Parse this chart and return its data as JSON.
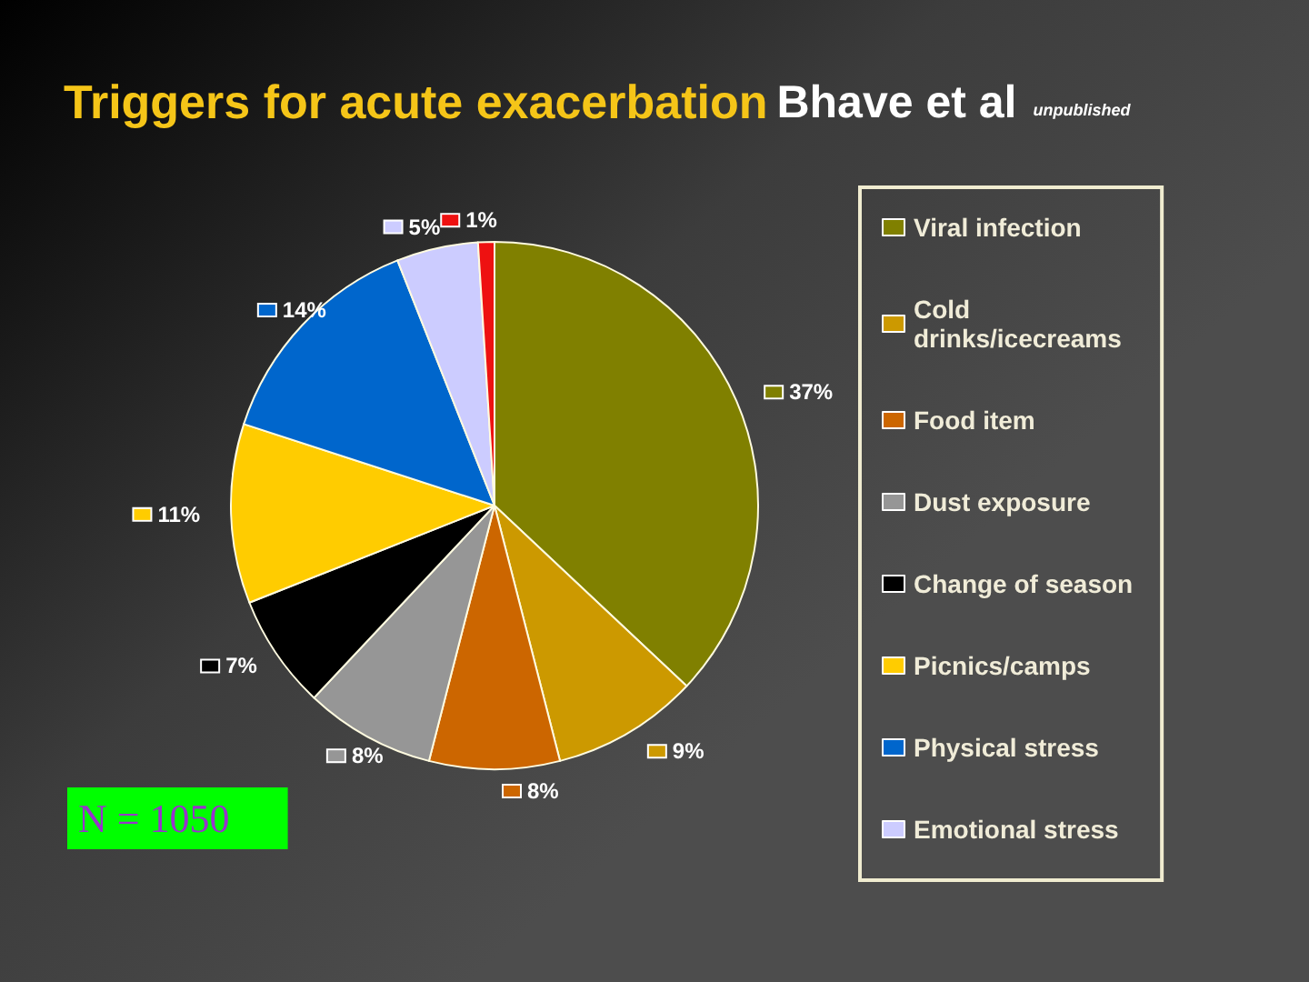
{
  "chart_data": {
    "type": "pie",
    "title": "Triggers for acute exacerbation",
    "subtitle": "Bhave et al",
    "annotations": [
      "unpublished",
      "N = 1050"
    ],
    "categories": [
      "Viral infection",
      "Cold drinks/icecreams",
      "Food item",
      "Dust exposure",
      "Change of season",
      "Picnics/camps",
      "Physical stress",
      "Emotional stress",
      null
    ],
    "values": [
      37,
      9,
      8,
      8,
      7,
      11,
      14,
      5,
      1
    ],
    "value_labels": [
      "37%",
      "9%",
      "8%",
      "8%",
      "7%",
      "11%",
      "14%",
      "5%",
      "1%"
    ],
    "colors": [
      "#808000",
      "#cc9900",
      "#cc6600",
      "#969696",
      "#000000",
      "#ffcc00",
      "#0066cc",
      "#ccccff",
      "#ee1111"
    ],
    "legend": "right"
  }
}
